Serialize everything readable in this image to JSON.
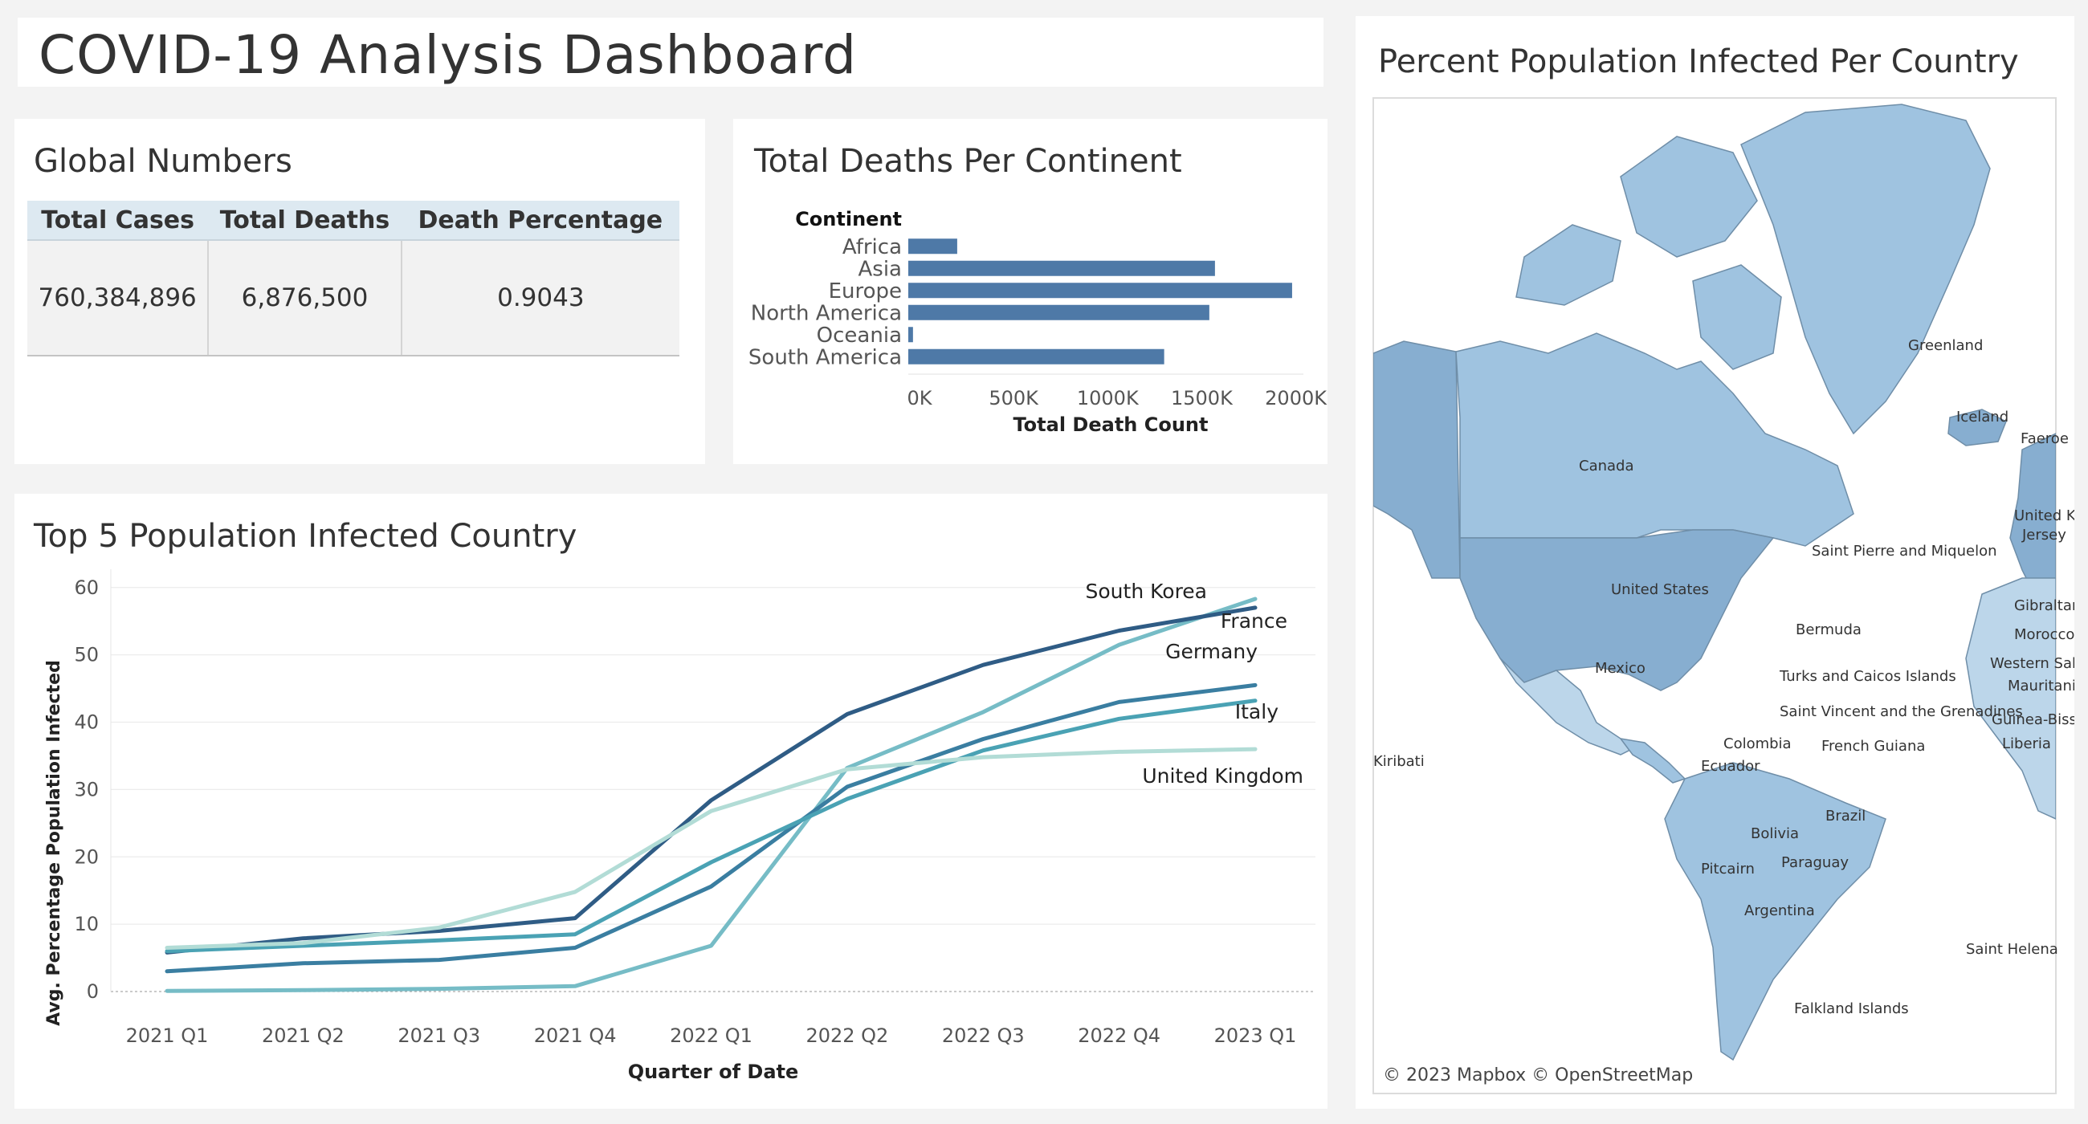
{
  "dashboard": {
    "title": "COVID-19 Analysis Dashboard"
  },
  "global_numbers": {
    "title": "Global Numbers",
    "headers": [
      "Total Cases",
      "Total Deaths",
      "Death Percentage"
    ],
    "values": [
      "760,384,896",
      "6,876,500",
      "0.9043"
    ]
  },
  "deaths_per_continent": {
    "title": "Total Deaths Per Continent",
    "category_header": "Continent"
  },
  "top5": {
    "title": "Top 5 Population Infected Country"
  },
  "map": {
    "title": "Percent Population Infected Per Country",
    "attribution": "© 2023 Mapbox © OpenStreetMap",
    "labels": [
      "Greenland",
      "Iceland",
      "Faeroe Islands",
      "Canada",
      "United Kingdom",
      "Jersey",
      "Saint Pierre and Miquelon",
      "United States",
      "Gibraltar",
      "Morocco",
      "Bermuda",
      "Western Sahara",
      "Mauritania",
      "Mexico",
      "Turks and Caicos Islands",
      "Guinea-Bissau",
      "Saint Vincent and the Grenadines",
      "Liberia",
      "Colombia",
      "French Guiana",
      "Kiribati",
      "Ecuador",
      "Brazil",
      "Bolivia",
      "Paraguay",
      "Pitcairn",
      "Argentina",
      "Saint Helena",
      "Falkland Islands"
    ],
    "colors": {
      "land_light": "#bcd6ea",
      "land_mid": "#9fc3e0",
      "land_dark": "#87aed0",
      "border": "#6f8ea8"
    }
  },
  "chart_data": [
    {
      "type": "bar",
      "orientation": "horizontal",
      "categories": [
        "Africa",
        "Asia",
        "Europe",
        "North America",
        "Oceania",
        "South America"
      ],
      "values": [
        260000,
        1630000,
        2040000,
        1600000,
        25000,
        1360000
      ],
      "xlabel": "Total Death Count",
      "ylabel": "Continent",
      "xlim": [
        0,
        2100000
      ],
      "xticks": [
        0,
        500000,
        1000000,
        1500000,
        2000000
      ],
      "xtick_labels": [
        "0K",
        "500K",
        "1000K",
        "1500K",
        "2000K"
      ],
      "grid": false,
      "color": "#4e79a7"
    },
    {
      "type": "line",
      "categories": [
        "2021 Q1",
        "2021 Q2",
        "2021 Q3",
        "2021 Q4",
        "2022 Q1",
        "2022 Q2",
        "2022 Q3",
        "2022 Q4",
        "2023 Q1"
      ],
      "series": [
        {
          "name": "South Korea",
          "values": [
            0.1,
            0.2,
            0.4,
            0.8,
            6.8,
            33.2,
            41.5,
            51.5,
            58.3
          ],
          "color": "#76bcc6"
        },
        {
          "name": "France",
          "values": [
            5.8,
            7.9,
            9.0,
            10.9,
            28.4,
            41.2,
            48.5,
            53.6,
            57.0
          ],
          "color": "#2f5c85"
        },
        {
          "name": "Germany",
          "values": [
            3.0,
            4.2,
            4.7,
            6.5,
            15.6,
            30.4,
            37.5,
            43.0,
            45.5
          ],
          "color": "#3a7ea1"
        },
        {
          "name": "Italy",
          "values": [
            6.0,
            6.8,
            7.6,
            8.5,
            19.2,
            28.6,
            35.8,
            40.5,
            43.2
          ],
          "color": "#4aa2b4"
        },
        {
          "name": "United Kingdom",
          "values": [
            6.5,
            7.2,
            9.5,
            14.8,
            26.8,
            33.0,
            34.8,
            35.6,
            36.0
          ],
          "color": "#b2dcd6"
        }
      ],
      "xlabel": "Quarter of Date",
      "ylabel": "Avg. Percentage Population Infected",
      "ylim": [
        0,
        62
      ],
      "yticks": [
        0,
        10,
        20,
        30,
        40,
        50,
        60
      ],
      "grid": true
    }
  ]
}
